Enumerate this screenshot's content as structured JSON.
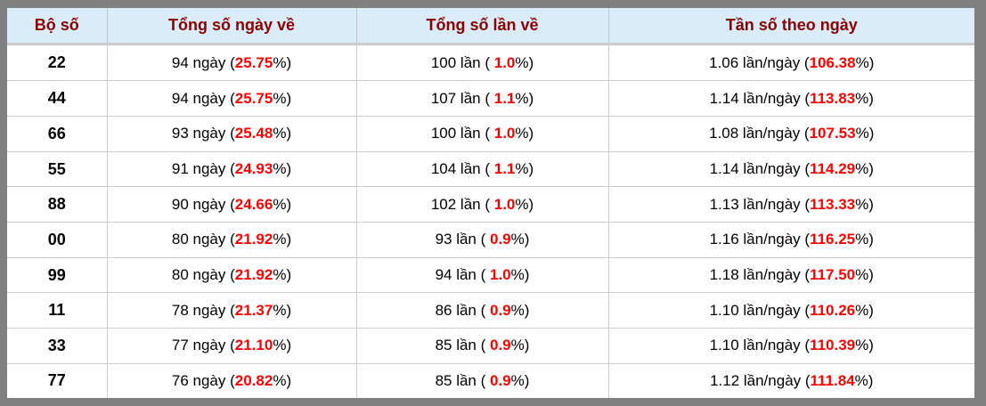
{
  "table": {
    "columns": [
      {
        "label": "Bộ số"
      },
      {
        "label": "Tổng số ngày về"
      },
      {
        "label": "Tổng số lần về"
      },
      {
        "label": "Tần số theo ngày"
      }
    ],
    "rows": [
      {
        "pair": "22",
        "days_pre": "94 ngày (",
        "days_val": "25.75",
        "days_post": "%)",
        "times_pre": "100 lần ( ",
        "times_val": "1.0",
        "times_post": "%)",
        "freq_pre": "1.06 lần/ngày (",
        "freq_val": "106.38",
        "freq_post": "%)"
      },
      {
        "pair": "44",
        "days_pre": "94 ngày (",
        "days_val": "25.75",
        "days_post": "%)",
        "times_pre": "107 lần ( ",
        "times_val": "1.1",
        "times_post": "%)",
        "freq_pre": "1.14 lần/ngày (",
        "freq_val": "113.83",
        "freq_post": "%)"
      },
      {
        "pair": "66",
        "days_pre": "93 ngày (",
        "days_val": "25.48",
        "days_post": "%)",
        "times_pre": "100 lần ( ",
        "times_val": "1.0",
        "times_post": "%)",
        "freq_pre": "1.08 lần/ngày (",
        "freq_val": "107.53",
        "freq_post": "%)"
      },
      {
        "pair": "55",
        "days_pre": "91 ngày (",
        "days_val": "24.93",
        "days_post": "%)",
        "times_pre": "104 lần ( ",
        "times_val": "1.1",
        "times_post": "%)",
        "freq_pre": "1.14 lần/ngày (",
        "freq_val": "114.29",
        "freq_post": "%)"
      },
      {
        "pair": "88",
        "days_pre": "90 ngày (",
        "days_val": "24.66",
        "days_post": "%)",
        "times_pre": "102 lần ( ",
        "times_val": "1.0",
        "times_post": "%)",
        "freq_pre": "1.13 lần/ngày (",
        "freq_val": "113.33",
        "freq_post": "%)"
      },
      {
        "pair": "00",
        "days_pre": "80 ngày (",
        "days_val": "21.92",
        "days_post": "%)",
        "times_pre": "93 lần ( ",
        "times_val": "0.9",
        "times_post": "%)",
        "freq_pre": "1.16 lần/ngày (",
        "freq_val": "116.25",
        "freq_post": "%)"
      },
      {
        "pair": "99",
        "days_pre": "80 ngày (",
        "days_val": "21.92",
        "days_post": "%)",
        "times_pre": "94 lần ( ",
        "times_val": "1.0",
        "times_post": "%)",
        "freq_pre": "1.18 lần/ngày (",
        "freq_val": "117.50",
        "freq_post": "%)"
      },
      {
        "pair": "11",
        "days_pre": "78 ngày (",
        "days_val": "21.37",
        "days_post": "%)",
        "times_pre": "86 lần ( ",
        "times_val": "0.9",
        "times_post": "%)",
        "freq_pre": "1.10 lần/ngày (",
        "freq_val": "110.26",
        "freq_post": "%)"
      },
      {
        "pair": "33",
        "days_pre": "77 ngày (",
        "days_val": "21.10",
        "days_post": "%)",
        "times_pre": "85 lần ( ",
        "times_val": "0.9",
        "times_post": "%)",
        "freq_pre": "1.10 lần/ngày (",
        "freq_val": "110.39",
        "freq_post": "%)"
      },
      {
        "pair": "77",
        "days_pre": "76 ngày (",
        "days_val": "20.82",
        "days_post": "%)",
        "times_pre": "85 lần ( ",
        "times_val": "0.9",
        "times_post": "%)",
        "freq_pre": "1.12 lần/ngày (",
        "freq_val": "111.84",
        "freq_post": "%)"
      }
    ]
  },
  "colors": {
    "frame_gray": "#808080",
    "header_bg": "#d9ecf7",
    "header_text": "#8b0000",
    "highlight_red": "#ff0000",
    "grid_line": "#cccccc"
  }
}
